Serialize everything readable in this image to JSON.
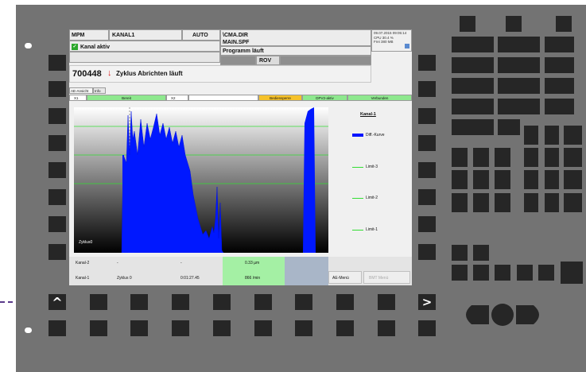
{
  "header": {
    "mode_label": "MPM",
    "channel": "KANAL1",
    "op_mode": "AUTO",
    "program_path": "\\CMA.DIR",
    "program_file": "MAIN.SPF",
    "channel_state": "Kanal aktiv",
    "program_state": "Programm läuft",
    "rov": "ROV",
    "datetime": "09.07.2015 09:05:14",
    "cpu": "CPU  30.4 %",
    "free": "Frei  380 MB"
  },
  "alarm": {
    "number": "700448",
    "text": "Zyklus Abrichten läuft"
  },
  "tabs": [
    "AE-Ansicht",
    "Info"
  ],
  "status_row": {
    "x1": "X1",
    "bereit": "Bereit",
    "x2": "X2",
    "bedien": "Bediensperre",
    "dpv": "DPV2-aktiv",
    "verbunden": "Verbunden"
  },
  "legend": {
    "title": "Kanal-1",
    "items": [
      {
        "name": "Diff.-Kurve",
        "color": "#0014ff"
      },
      {
        "name": "Limit-3",
        "color": "#33dd33"
      },
      {
        "name": "Limit-2",
        "color": "#33dd33"
      },
      {
        "name": "Limit-1",
        "color": "#33dd33"
      }
    ]
  },
  "plot": {
    "cycle_label": "Zyklus0"
  },
  "bottom": {
    "r1_name": "Kanal-2",
    "r1_a": "-",
    "r1_b": "-",
    "r1_value": "0.33 µm",
    "r2_name": "Kanal-1",
    "r2_a": "Zyklus 0",
    "r2_b": "0:01:27.45",
    "r2_value": "866  /min",
    "ae_menu": "AE-Menü",
    "btm_menu": "BMT Menü"
  },
  "nav": {
    "up_arrow": "^",
    "right_arrow": ">"
  }
}
